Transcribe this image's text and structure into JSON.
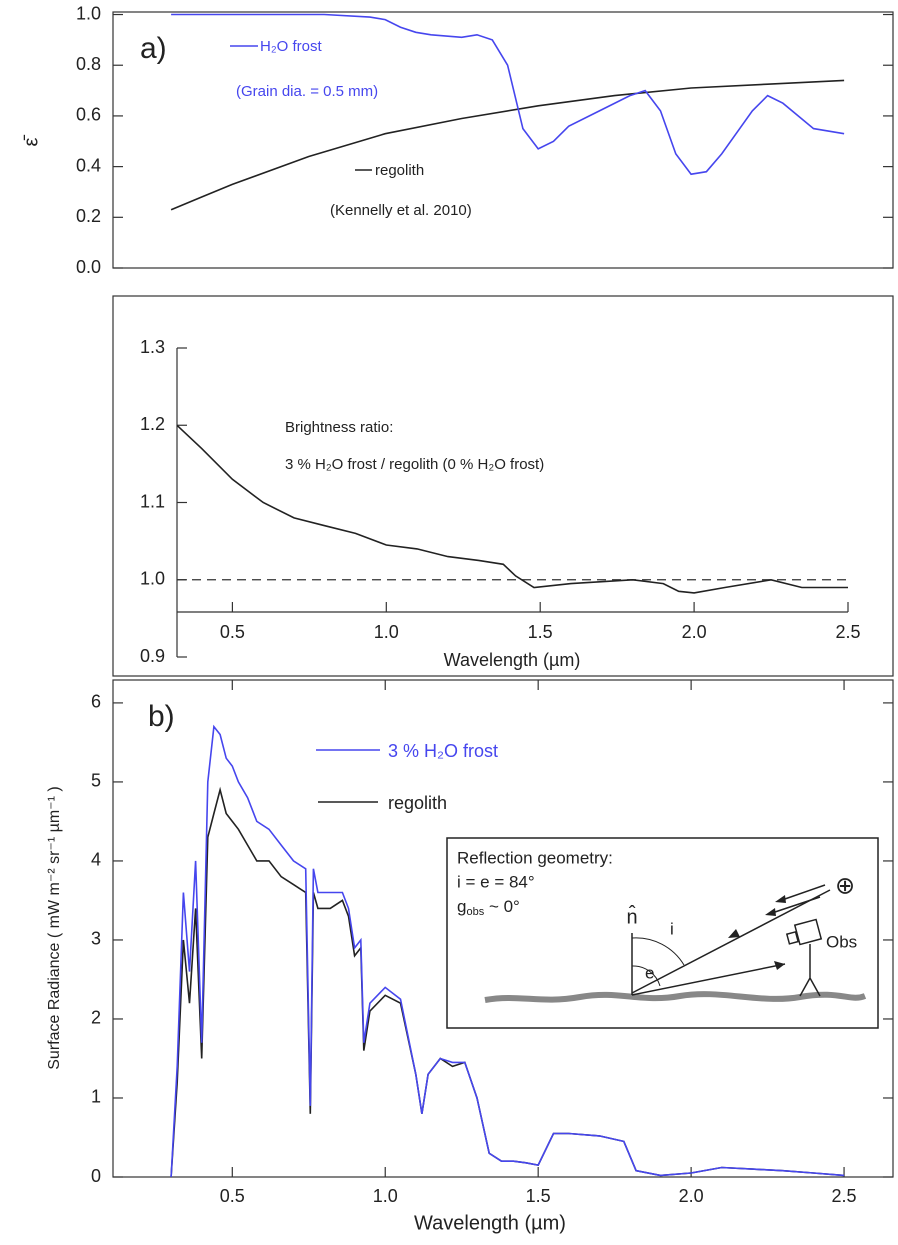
{
  "chart_data": [
    {
      "type": "line",
      "panel_label": "a)",
      "ylabel": "ε̄",
      "xlim": [
        0.11,
        2.66
      ],
      "ylim": [
        0,
        1.01
      ],
      "yticks": [
        {
          "value": 0,
          "label": "0.0"
        },
        {
          "value": 0.2,
          "label": "0.2"
        },
        {
          "value": 0.4,
          "label": "0.4"
        },
        {
          "value": 0.6,
          "label": "0.6"
        },
        {
          "value": 0.8,
          "label": "0.8"
        },
        {
          "value": 1,
          "label": "1.0"
        }
      ],
      "annotations": [
        "(Grain dia. = 0.5 mm)",
        "(Kennelly et al. 2010)"
      ],
      "series": [
        {
          "name": "H₂O frost",
          "color": "#4646ee",
          "x": [
            0.3,
            0.5,
            0.8,
            0.95,
            1.0,
            1.05,
            1.1,
            1.15,
            1.25,
            1.3,
            1.35,
            1.4,
            1.45,
            1.5,
            1.55,
            1.6,
            1.7,
            1.8,
            1.85,
            1.9,
            1.95,
            2.0,
            2.05,
            2.1,
            2.2,
            2.25,
            2.3,
            2.4,
            2.5
          ],
          "values": [
            1.0,
            1.0,
            1.0,
            0.99,
            0.98,
            0.95,
            0.93,
            0.92,
            0.91,
            0.92,
            0.9,
            0.8,
            0.55,
            0.47,
            0.5,
            0.56,
            0.62,
            0.68,
            0.7,
            0.62,
            0.45,
            0.37,
            0.38,
            0.45,
            0.62,
            0.68,
            0.65,
            0.55,
            0.53
          ]
        },
        {
          "name": "regolith",
          "color": "#222222",
          "x": [
            0.3,
            0.4,
            0.5,
            0.75,
            1.0,
            1.25,
            1.5,
            1.75,
            2.0,
            2.25,
            2.5
          ],
          "values": [
            0.23,
            0.28,
            0.33,
            0.44,
            0.53,
            0.59,
            0.64,
            0.68,
            0.71,
            0.725,
            0.74
          ]
        }
      ]
    },
    {
      "type": "line",
      "xlabel": "Wavelength (µm)",
      "annotations": [
        "Brightness ratio:",
        "3 % H₂O frost / regolith (0 % H₂O frost)"
      ],
      "xlim": [
        0.32,
        2.5
      ],
      "ylim": [
        0.9,
        1.3
      ],
      "xticks": [
        0.5,
        {
          "value": 1,
          "label": "1.0"
        },
        1.5,
        {
          "value": 2,
          "label": "2.0"
        },
        2.5
      ],
      "yticks": [
        0.9,
        {
          "value": 1,
          "label": "1.0"
        },
        1.1,
        1.2,
        1.3
      ],
      "reference_line": 1.0,
      "color": "#222222",
      "x": [
        0.32,
        0.4,
        0.5,
        0.6,
        0.7,
        0.8,
        0.9,
        1.0,
        1.1,
        1.2,
        1.3,
        1.38,
        1.42,
        1.48,
        1.6,
        1.8,
        1.9,
        1.95,
        2.0,
        2.1,
        2.25,
        2.35,
        2.5
      ],
      "values": [
        1.2,
        1.17,
        1.13,
        1.1,
        1.08,
        1.07,
        1.06,
        1.045,
        1.04,
        1.03,
        1.025,
        1.02,
        1.005,
        0.99,
        0.995,
        1.0,
        0.995,
        0.985,
        0.983,
        0.99,
        1.0,
        0.99,
        0.99
      ]
    },
    {
      "type": "line",
      "panel_label": "b)",
      "xlabel": "Wavelength (µm)",
      "ylabel": "Surface Radiance ( mW m⁻² sr⁻¹ µm⁻¹ )",
      "xlim": [
        0.11,
        2.66
      ],
      "ylim": [
        0,
        6.29
      ],
      "xticks": [
        0.5,
        {
          "value": 1,
          "label": "1.0"
        },
        1.5,
        {
          "value": 2,
          "label": "2.0"
        },
        2.5
      ],
      "yticks": [
        0,
        1,
        2,
        3,
        4,
        5,
        6
      ],
      "x": [
        0.3,
        0.32,
        0.34,
        0.36,
        0.38,
        0.4,
        0.42,
        0.44,
        0.46,
        0.48,
        0.5,
        0.52,
        0.55,
        0.58,
        0.62,
        0.66,
        0.7,
        0.74,
        0.755,
        0.765,
        0.78,
        0.82,
        0.86,
        0.88,
        0.9,
        0.92,
        0.93,
        0.95,
        1.0,
        1.05,
        1.1,
        1.12,
        1.14,
        1.18,
        1.22,
        1.26,
        1.3,
        1.34,
        1.38,
        1.42,
        1.46,
        1.5,
        1.55,
        1.6,
        1.7,
        1.78,
        1.82,
        1.9,
        2.0,
        2.1,
        2.2,
        2.3,
        2.4,
        2.5
      ],
      "series": [
        {
          "name": "3 % H₂O frost",
          "color": "#4646ee",
          "values": [
            0.0,
            1.4,
            3.6,
            2.6,
            4.0,
            1.7,
            5.0,
            5.7,
            5.6,
            5.3,
            5.2,
            5.0,
            4.8,
            4.5,
            4.4,
            4.2,
            4.0,
            3.9,
            0.9,
            3.9,
            3.6,
            3.6,
            3.6,
            3.4,
            2.9,
            3.0,
            1.7,
            2.2,
            2.4,
            2.25,
            1.3,
            0.8,
            1.3,
            1.5,
            1.45,
            1.45,
            1.0,
            0.3,
            0.2,
            0.2,
            0.18,
            0.15,
            0.55,
            0.55,
            0.52,
            0.45,
            0.08,
            0.02,
            0.05,
            0.12,
            0.1,
            0.08,
            0.05,
            0.02
          ]
        },
        {
          "name": "regolith",
          "color": "#222222",
          "values": [
            0.0,
            1.2,
            3.0,
            2.2,
            3.4,
            1.5,
            4.3,
            4.6,
            4.9,
            4.6,
            4.5,
            4.4,
            4.2,
            4.0,
            4.0,
            3.8,
            3.7,
            3.6,
            0.8,
            3.6,
            3.4,
            3.4,
            3.5,
            3.3,
            2.8,
            2.9,
            1.6,
            2.1,
            2.3,
            2.2,
            1.3,
            0.8,
            1.3,
            1.5,
            1.4,
            1.45,
            1.0,
            0.3,
            0.2,
            0.2,
            0.18,
            0.15,
            0.55,
            0.55,
            0.52,
            0.45,
            0.08,
            0.02,
            0.05,
            0.12,
            0.1,
            0.08,
            0.05,
            0.02
          ]
        }
      ],
      "inset": {
        "title": "Reflection geometry:",
        "angles": "i = e = 84°",
        "g": "g",
        "g_sub": "obs",
        "g_rest": " ~ 0°",
        "normal": "n̂",
        "i": "i",
        "e": "e",
        "observer": "Obs",
        "earth": "⊕"
      }
    }
  ]
}
